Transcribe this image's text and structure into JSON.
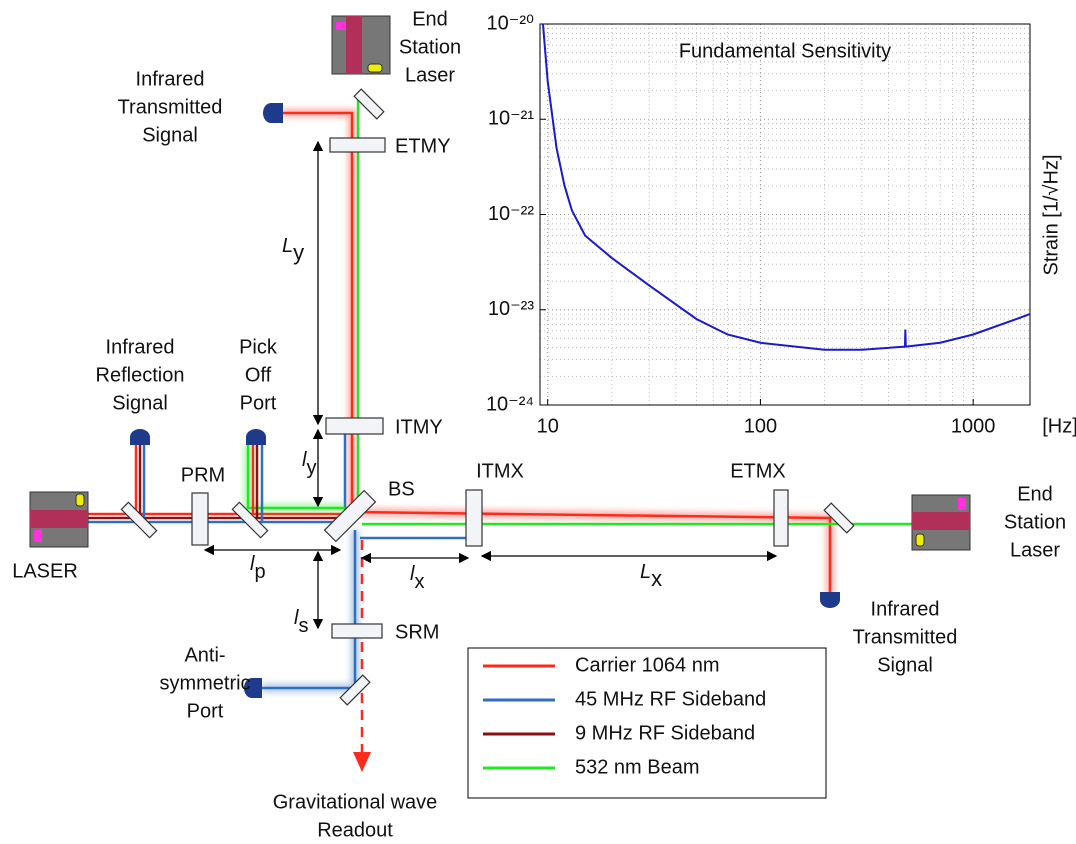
{
  "diagram": {
    "labels": {
      "end_station_laser_top": [
        "End",
        "Station",
        "Laser"
      ],
      "infrared_transmitted_top": [
        "Infrared",
        "Transmitted",
        "Signal"
      ],
      "etmy": [
        "ETMY"
      ],
      "infrared_reflection": [
        "Infrared",
        "Reflection",
        "Signal"
      ],
      "pick_off": [
        "Pick",
        "Off",
        "Port"
      ],
      "itmy": [
        "ITMY"
      ],
      "prm": [
        "PRM"
      ],
      "bs": [
        "BS"
      ],
      "itmx": [
        "ITMX"
      ],
      "etmx": [
        "ETMX"
      ],
      "end_station_laser_right": [
        "End",
        "Station",
        "Laser"
      ],
      "laser": [
        "LASER"
      ],
      "srm": [
        "SRM"
      ],
      "infrared_transmitted_right": [
        "Infrared",
        "Transmitted",
        "Signal"
      ],
      "anti_symmetric": [
        "Anti-",
        "symmetric",
        "Port"
      ],
      "gw_readout": [
        "Gravitational wave",
        "Readout"
      ]
    },
    "lengths": {
      "Ly": {
        "symbol": "L",
        "sub": "y"
      },
      "ly": {
        "symbol": "l",
        "sub": "y"
      },
      "lp": {
        "symbol": "l",
        "sub": "p"
      },
      "ls": {
        "symbol": "l",
        "sub": "s"
      },
      "lx": {
        "symbol": "l",
        "sub": "x"
      },
      "Lx": {
        "symbol": "L",
        "sub": "x"
      }
    },
    "legend": [
      {
        "name": "Carrier 1064 nm",
        "color": "#ff2a1a"
      },
      {
        "name": "45 MHz RF Sideband",
        "color": "#2f6fc0"
      },
      {
        "name": "9 MHz RF Sideband",
        "color": "#8b1010"
      },
      {
        "name": "532 nm Beam",
        "color": "#22e822"
      }
    ]
  },
  "chart_data": {
    "type": "line",
    "title": "Fundamental Sensitivity",
    "y_label": "Strain [1/√Hz]",
    "x_unit": "[Hz]",
    "x": [
      9.5,
      10,
      11,
      12,
      13,
      15,
      20,
      30,
      50,
      70,
      100,
      200,
      300,
      478,
      480,
      482,
      700,
      1000,
      1850
    ],
    "series": [
      {
        "color": "#1a1acc",
        "values": [
          1e-20,
          2.5e-21,
          5e-22,
          2e-22,
          1.1e-22,
          6e-23,
          3.5e-23,
          1.8e-23,
          8e-24,
          5.5e-24,
          4.5e-24,
          3.8e-24,
          3.8e-24,
          4.1e-24,
          6.2e-24,
          4.1e-24,
          4.5e-24,
          5.5e-24,
          9e-24
        ]
      }
    ],
    "xlim": [
      9.2,
      1850
    ],
    "ylim": [
      1e-24,
      1e-20
    ],
    "xticks": [
      10,
      100,
      1000
    ],
    "yticks": [
      {
        "value": 1e-24,
        "label": "10⁻²⁴"
      },
      {
        "value": 1e-23,
        "label": "10⁻²³"
      },
      {
        "value": 1e-22,
        "label": "10⁻²²"
      },
      {
        "value": 1e-21,
        "label": "10⁻²¹"
      },
      {
        "value": 1e-20,
        "label": "10⁻²⁰"
      }
    ],
    "log_x": true,
    "log_y": true,
    "grid": true
  }
}
